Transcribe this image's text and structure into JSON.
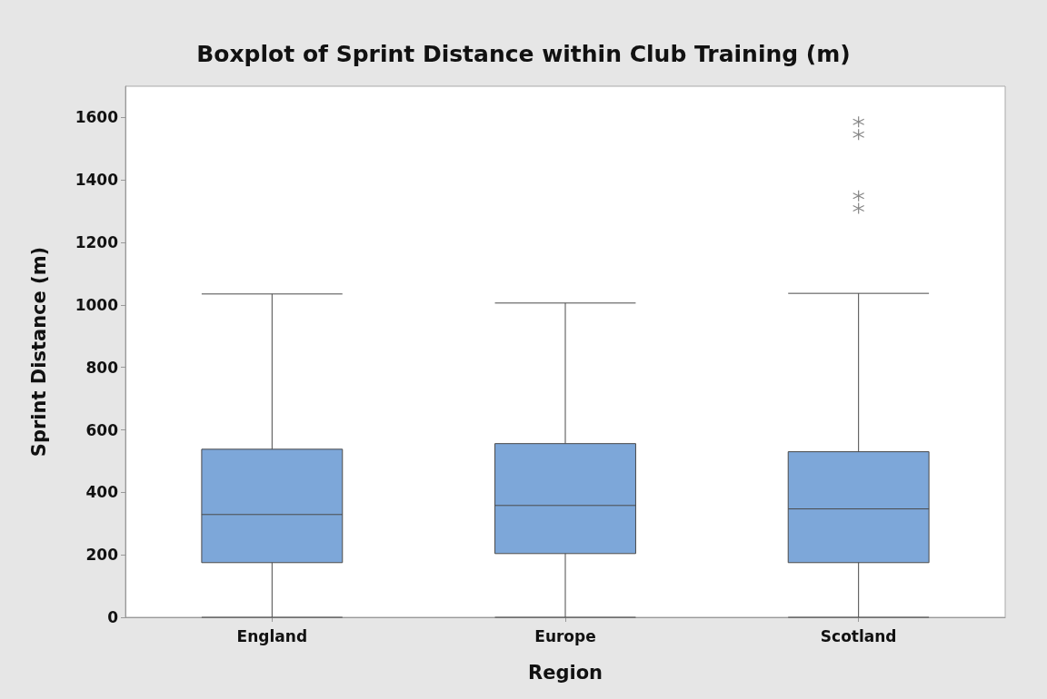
{
  "chart_data": {
    "type": "box",
    "title": "Boxplot of Sprint Distance within Club Training (m)",
    "xlabel": "Region",
    "ylabel": "Sprint Distance (m)",
    "categories": [
      "England",
      "Europe",
      "Scotland"
    ],
    "boxes": [
      {
        "low": 0,
        "q1": 175,
        "median": 329,
        "q3": 538,
        "high": 1035
      },
      {
        "low": 0,
        "q1": 204,
        "median": 358,
        "q3": 556,
        "high": 1006
      },
      {
        "low": 0,
        "q1": 175,
        "median": 347,
        "q3": 530,
        "high": 1037,
        "outliers": [
          1586,
          1545,
          1349,
          1309
        ]
      }
    ],
    "color": "#7da7d9",
    "marker": "star",
    "ylim": [
      0,
      1700
    ],
    "yticks": [
      0,
      200,
      400,
      600,
      800,
      1000,
      1200,
      1400,
      1600
    ],
    "grid": false,
    "legend": false
  }
}
